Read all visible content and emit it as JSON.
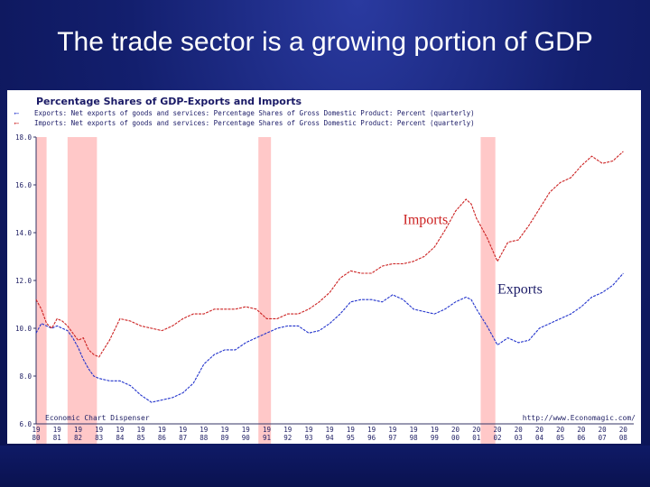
{
  "slide": {
    "title": "The trade sector is a growing portion of GDP"
  },
  "chart_data": {
    "type": "line",
    "title": "Percentage Shares of GDP-Exports and Imports",
    "legend": [
      {
        "text": "Exports: Net exports of goods and services: Percentage Shares of Gross Domestic Product: Percent (quarterly)",
        "color": "#2233cc"
      },
      {
        "text": "Imports: Net exports of goods and services: Percentage Shares of Gross Domestic Product: Percent (quarterly)",
        "color": "#cc2222"
      }
    ],
    "xlabel": "",
    "ylabel": "",
    "ylim": [
      6,
      18
    ],
    "xlim": [
      1980,
      2008.5
    ],
    "y_ticks": [
      "18.0",
      "16.0",
      "14.0",
      "12.0",
      "10.0",
      "8.0",
      "6.0"
    ],
    "y_tick_values": [
      18,
      16,
      14,
      12,
      10,
      8,
      6
    ],
    "x_ticks": [
      "19\n80",
      "19\n81",
      "19\n82",
      "19\n83",
      "19\n84",
      "19\n85",
      "19\n86",
      "19\n87",
      "19\n88",
      "19\n89",
      "19\n90",
      "19\n91",
      "19\n92",
      "19\n93",
      "19\n94",
      "19\n95",
      "19\n96",
      "19\n97",
      "19\n98",
      "19\n99",
      "20\n00",
      "20\n01",
      "20\n02",
      "20\n03",
      "20\n04",
      "20\n05",
      "20\n06",
      "20\n07",
      "20\n08"
    ],
    "x_tick_values": [
      1980,
      1981,
      1982,
      1983,
      1984,
      1985,
      1986,
      1987,
      1988,
      1989,
      1990,
      1991,
      1992,
      1993,
      1994,
      1995,
      1996,
      1997,
      1998,
      1999,
      2000,
      2001,
      2002,
      2003,
      2004,
      2005,
      2006,
      2007,
      2008
    ],
    "recessions": [
      [
        1980.0,
        1980.5
      ],
      [
        1981.5,
        1982.9
      ],
      [
        1990.6,
        1991.2
      ],
      [
        2001.2,
        2001.9
      ]
    ],
    "series": [
      {
        "name": "Exports",
        "color": "#2233cc",
        "x": [
          1980,
          1980.25,
          1980.5,
          1980.75,
          1981,
          1981.25,
          1981.5,
          1981.75,
          1982,
          1982.25,
          1982.5,
          1982.75,
          1983,
          1983.5,
          1984,
          1984.5,
          1985,
          1985.5,
          1986,
          1986.5,
          1987,
          1987.5,
          1988,
          1988.5,
          1989,
          1989.5,
          1990,
          1990.5,
          1991,
          1991.5,
          1992,
          1992.5,
          1993,
          1993.5,
          1994,
          1994.5,
          1995,
          1995.5,
          1996,
          1996.5,
          1997,
          1997.5,
          1998,
          1998.5,
          1999,
          1999.5,
          2000,
          2000.5,
          2000.75,
          2001,
          2001.5,
          2002,
          2002.5,
          2003,
          2003.5,
          2004,
          2004.5,
          2005,
          2005.5,
          2006,
          2006.5,
          2007,
          2007.5,
          2008
        ],
        "y": [
          9.8,
          10.2,
          10.1,
          10.0,
          10.1,
          10.0,
          9.9,
          9.6,
          9.2,
          8.7,
          8.3,
          8.0,
          7.9,
          7.8,
          7.8,
          7.6,
          7.2,
          6.9,
          7.0,
          7.1,
          7.3,
          7.7,
          8.5,
          8.9,
          9.1,
          9.1,
          9.4,
          9.6,
          9.8,
          10.0,
          10.1,
          10.1,
          9.8,
          9.9,
          10.2,
          10.6,
          11.1,
          11.2,
          11.2,
          11.1,
          11.4,
          11.2,
          10.8,
          10.7,
          10.6,
          10.8,
          11.1,
          11.3,
          11.2,
          10.8,
          10.1,
          9.3,
          9.6,
          9.4,
          9.5,
          10.0,
          10.2,
          10.4,
          10.6,
          10.9,
          11.3,
          11.5,
          11.8,
          12.3
        ]
      },
      {
        "name": "Imports",
        "color": "#cc2222",
        "x": [
          1980,
          1980.25,
          1980.5,
          1980.75,
          1981,
          1981.25,
          1981.5,
          1981.75,
          1982,
          1982.25,
          1982.5,
          1982.75,
          1983,
          1983.5,
          1984,
          1984.5,
          1985,
          1985.5,
          1986,
          1986.5,
          1987,
          1987.5,
          1988,
          1988.5,
          1989,
          1989.5,
          1990,
          1990.5,
          1991,
          1991.5,
          1992,
          1992.5,
          1993,
          1993.5,
          1994,
          1994.5,
          1995,
          1995.5,
          1996,
          1996.5,
          1997,
          1997.5,
          1998,
          1998.5,
          1999,
          1999.5,
          2000,
          2000.5,
          2000.75,
          2001,
          2001.5,
          2002,
          2002.5,
          2003,
          2003.5,
          2004,
          2004.5,
          2005,
          2005.5,
          2006,
          2006.5,
          2007,
          2007.5,
          2008
        ],
        "y": [
          11.2,
          10.8,
          10.2,
          10.0,
          10.4,
          10.3,
          10.1,
          9.8,
          9.5,
          9.6,
          9.1,
          8.9,
          8.8,
          9.5,
          10.4,
          10.3,
          10.1,
          10.0,
          9.9,
          10.1,
          10.4,
          10.6,
          10.6,
          10.8,
          10.8,
          10.8,
          10.9,
          10.8,
          10.4,
          10.4,
          10.6,
          10.6,
          10.8,
          11.1,
          11.5,
          12.1,
          12.4,
          12.3,
          12.3,
          12.6,
          12.7,
          12.7,
          12.8,
          13.0,
          13.4,
          14.1,
          14.9,
          15.4,
          15.2,
          14.6,
          13.8,
          12.8,
          13.6,
          13.7,
          14.3,
          15.0,
          15.7,
          16.1,
          16.3,
          16.8,
          17.2,
          16.9,
          17.0,
          17.4
        ]
      }
    ],
    "annotations": [
      {
        "text": "Imports",
        "color": "#cc2222"
      },
      {
        "text": "Exports",
        "color": "#1a1a66"
      }
    ],
    "footer_left": "Economic Chart Dispenser",
    "footer_right": "http://www.Economagic.com/"
  }
}
